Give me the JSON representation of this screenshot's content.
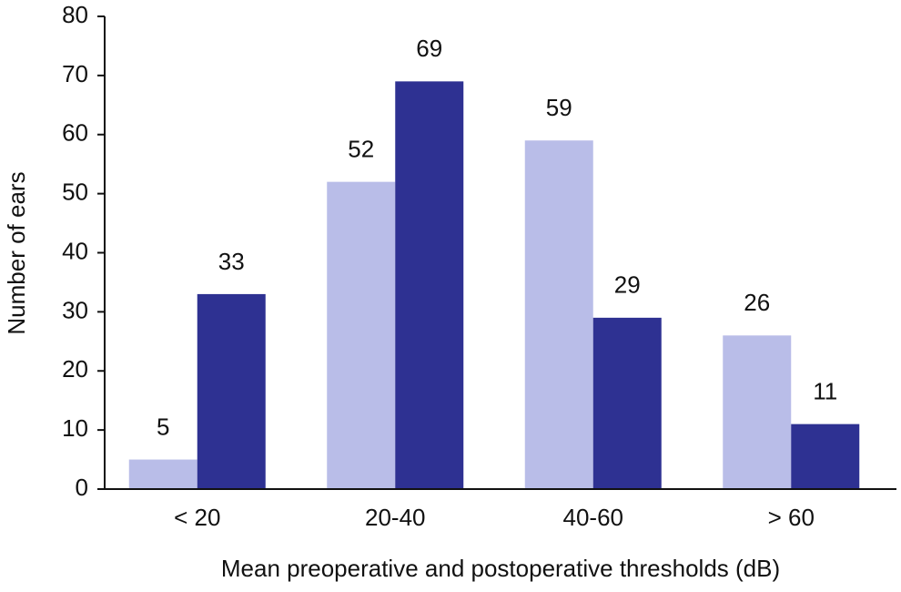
{
  "chart_data": {
    "type": "bar",
    "x_label": "Mean preoperative and postoperative thresholds (dB)",
    "y_label": "Number of ears",
    "categories": [
      "< 20",
      "20-40",
      "40-60",
      "> 60"
    ],
    "series": [
      {
        "color": "#b9bde8",
        "values": [
          5,
          52,
          59,
          26
        ]
      },
      {
        "color": "#2e3192",
        "values": [
          33,
          69,
          29,
          11
        ]
      }
    ],
    "ylim": [
      0,
      80
    ],
    "yticks": [
      0,
      10,
      20,
      30,
      40,
      50,
      60,
      70,
      80
    ]
  }
}
